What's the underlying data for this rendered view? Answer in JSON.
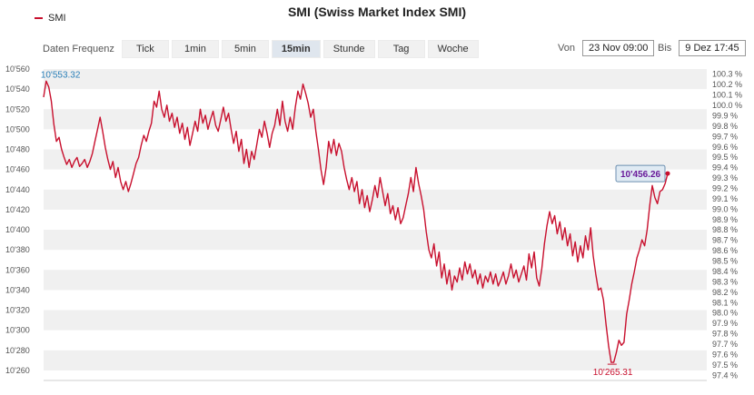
{
  "header": {
    "title": "SMI (Swiss Market Index SMI)",
    "legend_label": "SMI",
    "accent_color": "#c8102e"
  },
  "controls": {
    "label": "Daten Frequenz",
    "buttons": [
      {
        "label": "Tick",
        "active": false
      },
      {
        "label": "1min",
        "active": false
      },
      {
        "label": "5min",
        "active": false
      },
      {
        "label": "15min",
        "active": true
      },
      {
        "label": "Stunde",
        "active": false
      },
      {
        "label": "Tag",
        "active": false
      },
      {
        "label": "Woche",
        "active": false
      }
    ],
    "from_label": "Von",
    "from_value": "23 Nov 09:00",
    "to_label": "Bis",
    "to_value": "9 Dez 17:45"
  },
  "chart_data": {
    "type": "line",
    "series": [
      {
        "name": "SMI",
        "color": "#c8102e"
      }
    ],
    "ylim": [
      10250,
      10560
    ],
    "y_ticks": [
      "10'560",
      "10'540",
      "10'520",
      "10'500",
      "10'480",
      "10'460",
      "10'440",
      "10'420",
      "10'400",
      "10'380",
      "10'360",
      "10'340",
      "10'320",
      "10'300",
      "10'280",
      "10'260"
    ],
    "y2_ticks": [
      "100.3 %",
      "100.2 %",
      "100.1 %",
      "100.0 %",
      "99.9 %",
      "99.8 %",
      "99.7 %",
      "99.6 %",
      "99.5 %",
      "99.4 %",
      "99.3 %",
      "99.2 %",
      "99.1 %",
      "99.0 %",
      "98.9 %",
      "98.8 %",
      "98.7 %",
      "98.6 %",
      "98.5 %",
      "98.4 %",
      "98.3 %",
      "98.2 %",
      "98.1 %",
      "98.0 %",
      "97.9 %",
      "97.8 %",
      "97.7 %",
      "97.6 %",
      "97.5 %",
      "97.4 %"
    ],
    "y2lim": [
      97.35,
      100.35
    ],
    "values": [
      10532,
      10548,
      10542,
      10528,
      10505,
      10488,
      10492,
      10480,
      10472,
      10465,
      10470,
      10462,
      10468,
      10472,
      10463,
      10466,
      10470,
      10462,
      10468,
      10476,
      10488,
      10500,
      10512,
      10498,
      10482,
      10470,
      10460,
      10468,
      10452,
      10462,
      10448,
      10440,
      10448,
      10438,
      10446,
      10456,
      10466,
      10472,
      10484,
      10494,
      10488,
      10498,
      10506,
      10528,
      10522,
      10538,
      10520,
      10512,
      10524,
      10508,
      10516,
      10502,
      10512,
      10496,
      10506,
      10490,
      10502,
      10484,
      10496,
      10508,
      10498,
      10520,
      10506,
      10514,
      10500,
      10510,
      10518,
      10504,
      10498,
      10510,
      10522,
      10508,
      10516,
      10500,
      10486,
      10498,
      10478,
      10490,
      10466,
      10480,
      10462,
      10478,
      10470,
      10485,
      10500,
      10492,
      10508,
      10496,
      10482,
      10496,
      10504,
      10520,
      10504,
      10528,
      10508,
      10498,
      10512,
      10500,
      10522,
      10538,
      10530,
      10545,
      10536,
      10526,
      10512,
      10520,
      10498,
      10480,
      10460,
      10445,
      10462,
      10488,
      10476,
      10490,
      10474,
      10486,
      10478,
      10462,
      10450,
      10440,
      10452,
      10438,
      10448,
      10426,
      10440,
      10422,
      10434,
      10418,
      10430,
      10444,
      10432,
      10452,
      10438,
      10424,
      10436,
      10416,
      10424,
      10410,
      10422,
      10406,
      10412,
      10424,
      10436,
      10452,
      10438,
      10462,
      10446,
      10434,
      10420,
      10398,
      10380,
      10372,
      10386,
      10364,
      10378,
      10352,
      10366,
      10346,
      10360,
      10340,
      10354,
      10348,
      10362,
      10350,
      10368,
      10356,
      10366,
      10352,
      10360,
      10346,
      10356,
      10342,
      10354,
      10348,
      10358,
      10346,
      10356,
      10344,
      10350,
      10358,
      10346,
      10354,
      10366,
      10352,
      10360,
      10348,
      10356,
      10364,
      10350,
      10376,
      10362,
      10378,
      10352,
      10344,
      10362,
      10386,
      10404,
      10418,
      10406,
      10414,
      10396,
      10408,
      10390,
      10402,
      10384,
      10396,
      10374,
      10388,
      10368,
      10384,
      10372,
      10394,
      10380,
      10402,
      10374,
      10356,
      10340,
      10342,
      10330,
      10306,
      10284,
      10268,
      10268,
      10278,
      10290,
      10285,
      10288,
      10316,
      10330,
      10346,
      10358,
      10372,
      10380,
      10390,
      10384,
      10400,
      10424,
      10444,
      10432,
      10426,
      10438,
      10440,
      10446,
      10456
    ]
  }
}
